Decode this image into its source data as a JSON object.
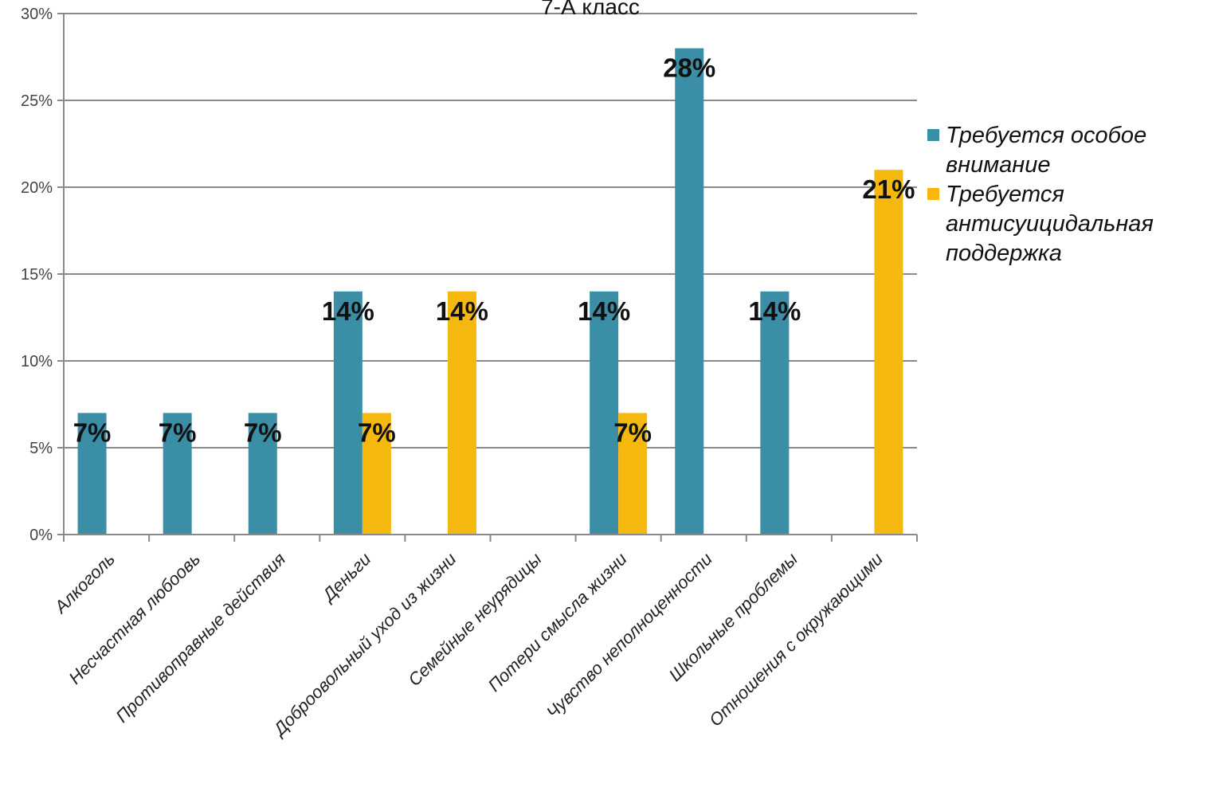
{
  "chart_data": {
    "type": "bar",
    "title": "7-А класс",
    "xlabel": "",
    "ylabel": "",
    "ylim": [
      0,
      30
    ],
    "yticks": [
      "0%",
      "5%",
      "10%",
      "15%",
      "20%",
      "25%",
      "30%"
    ],
    "grid": true,
    "legend_position": "right",
    "categories": [
      "Алкоголь",
      "Несчастная любоовь",
      "Противоправные действия",
      "Деньги",
      "Доброовольный уход из жизни",
      "Семейные неурядицы",
      "Потери смысла жизни",
      "Чувство неполноценности",
      "Школьные проблемы",
      "Отношения с окружающими"
    ],
    "series": [
      {
        "name": "Требуется особое внимание",
        "color": "#3a8ea5",
        "values": [
          7,
          7,
          7,
          14,
          0,
          0,
          14,
          28,
          14,
          0
        ],
        "labels": [
          "7%",
          "7%",
          "7%",
          "14%",
          "",
          "",
          "14%",
          "28%",
          "14%",
          ""
        ]
      },
      {
        "name": "Требуется антисуицидальная поддержка",
        "color": "#f5b80e",
        "values": [
          0,
          0,
          0,
          7,
          14,
          0,
          7,
          0,
          0,
          21
        ],
        "labels": [
          "",
          "",
          "",
          "7%",
          "14%",
          "",
          "7%",
          "",
          "",
          "21%"
        ]
      }
    ]
  }
}
